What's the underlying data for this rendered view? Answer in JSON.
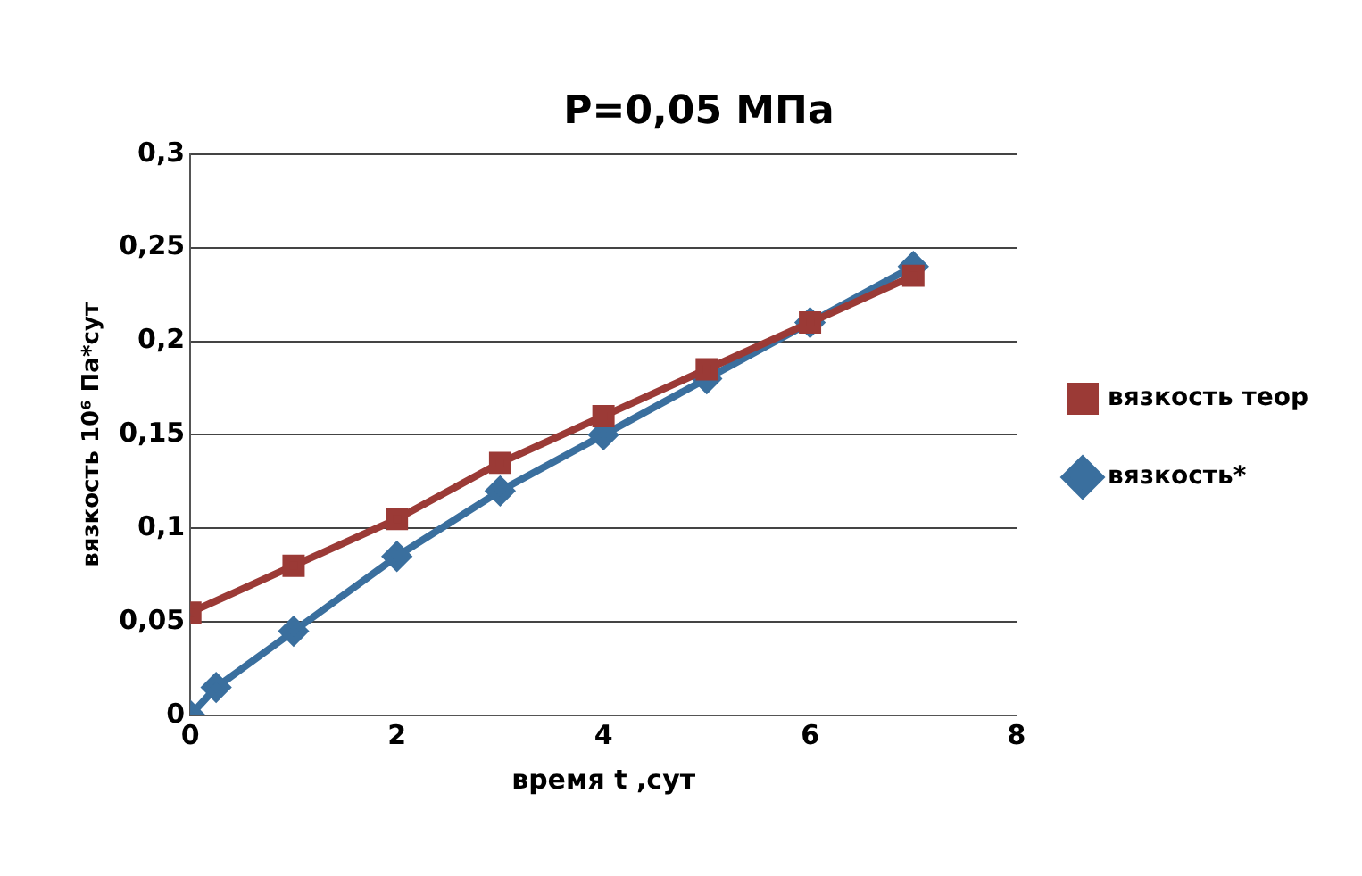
{
  "chart_data": {
    "type": "line",
    "title": "P=0,05 МПа",
    "xlabel": "время t ,сут",
    "ylabel": "вязкость 10⁶ Па*сут",
    "xlim": [
      0,
      8
    ],
    "xticks": [
      0,
      2,
      4,
      6,
      8
    ],
    "ylim": [
      0,
      0.3
    ],
    "yticks": [
      {
        "value": 0,
        "label": "0"
      },
      {
        "value": 0.05,
        "label": "0,05"
      },
      {
        "value": 0.1,
        "label": "0,1"
      },
      {
        "value": 0.15,
        "label": "0,15"
      },
      {
        "value": 0.2,
        "label": "0,2"
      },
      {
        "value": 0.25,
        "label": "0,25"
      },
      {
        "value": 0.3,
        "label": "0,3"
      }
    ],
    "grid": "y",
    "legend": "right",
    "series": [
      {
        "name": "вязкость теор",
        "color": "#9b3a36",
        "marker": "square",
        "x": [
          0,
          1,
          2,
          3,
          4,
          5,
          6,
          7
        ],
        "values": [
          0.055,
          0.08,
          0.105,
          0.135,
          0.16,
          0.185,
          0.21,
          0.235
        ]
      },
      {
        "name": "вязкость*",
        "color": "#3a6f9e",
        "marker": "diamond",
        "x": [
          0,
          0.25,
          1,
          2,
          3,
          4,
          5,
          6,
          7
        ],
        "values": [
          0,
          0.015,
          0.045,
          0.085,
          0.12,
          0.15,
          0.18,
          0.21,
          0.24
        ]
      }
    ]
  }
}
